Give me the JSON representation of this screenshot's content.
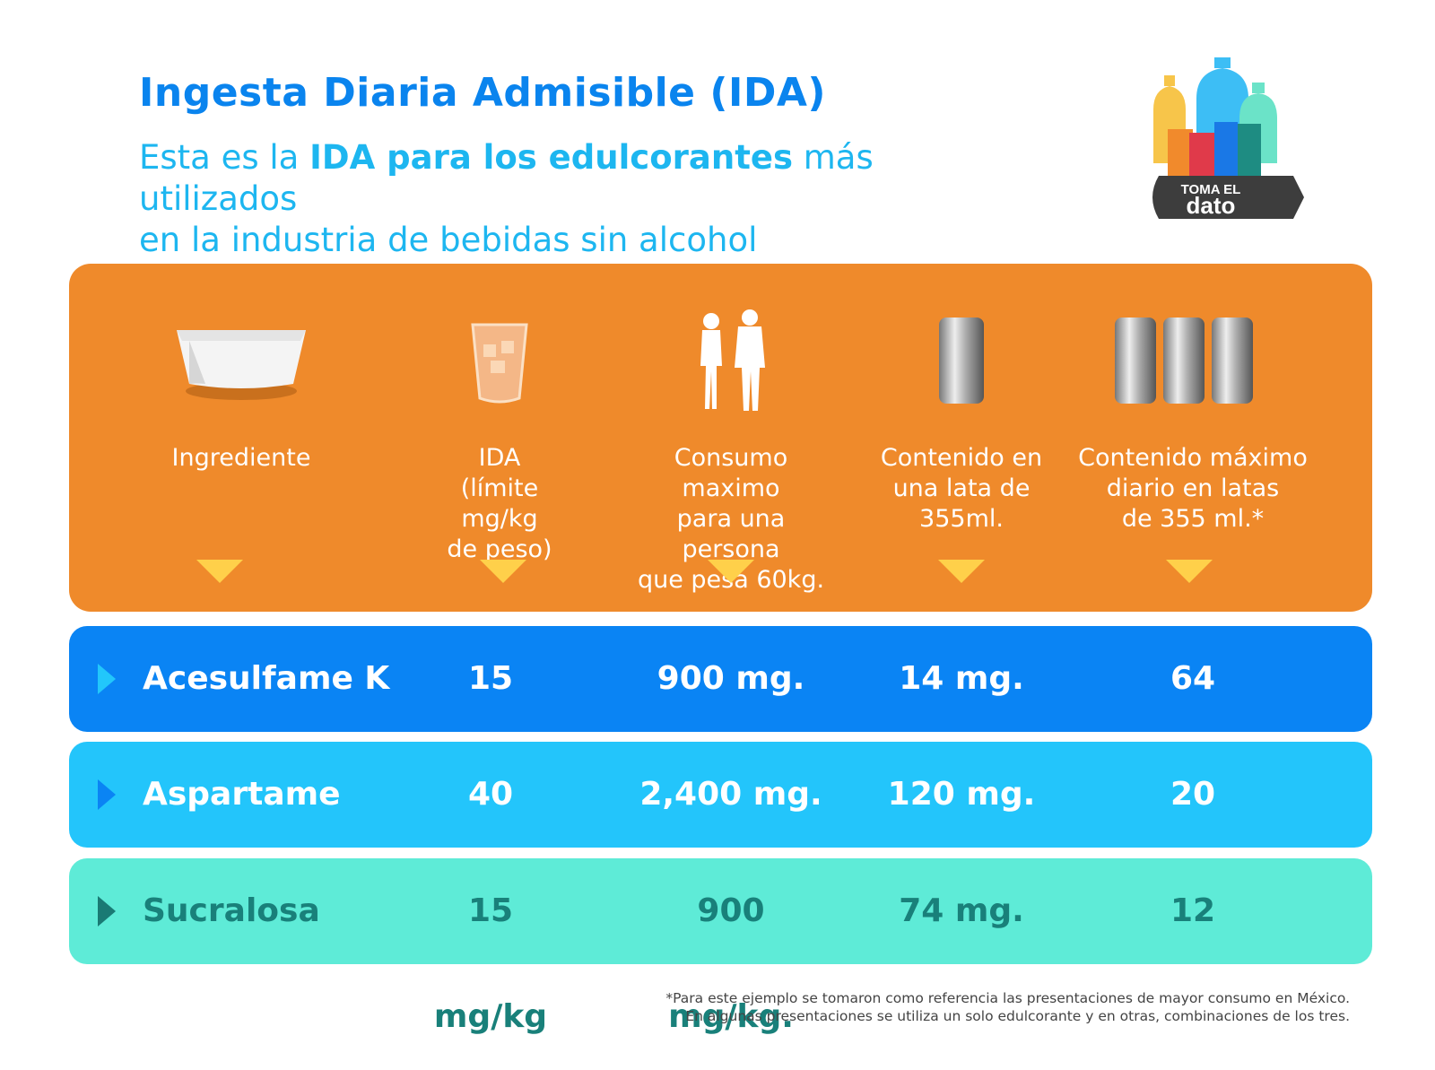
{
  "title": "Ingesta Diaria Admisible (IDA)",
  "subtitle": {
    "part1": "Esta es la ",
    "part2_bold": "IDA para los edulcorantes",
    "part3": " más utilizados",
    "line2": "en la industria de bebidas sin alcohol"
  },
  "logo": {
    "line1": "TOMA EL",
    "line2": "dato"
  },
  "columns": [
    {
      "icon": "sweetener-tub-icon",
      "label": "Ingrediente"
    },
    {
      "icon": "water-glass-icon",
      "label": "IDA\n(límite mg/kg\nde peso)"
    },
    {
      "icon": "people-silhouette-icon",
      "label": "Consumo maximo\npara una persona\nque pesa 60kg."
    },
    {
      "icon": "soda-can-icon",
      "label": "Contenido en\nuna lata de\n355ml."
    },
    {
      "icon": "three-cans-icon",
      "label": "Contenido máximo\ndiario en latas\nde 355 ml.*"
    }
  ],
  "rows": [
    {
      "ingredient": "Acesulfame K",
      "ida": "15 mg/kg",
      "max_60kg": "900 mg.",
      "per_can": "14 mg.",
      "max_cans": "64"
    },
    {
      "ingredient": "Aspartame",
      "ida": "40 mg/kg",
      "max_60kg": "2,400 mg.",
      "per_can": "120 mg.",
      "max_cans": "20"
    },
    {
      "ingredient": "Sucralosa",
      "ida": "15 mg/kg",
      "max_60kg": "900 mg/kg.",
      "per_can": "74 mg.",
      "max_cans": "12"
    }
  ],
  "footnote": {
    "line1": "*Para este ejemplo se tomaron como referencia las presentaciones de mayor consumo en México.",
    "line2": "En algunas presentaciones se utiliza un solo edulcorante y en otras, combinaciones de los tres."
  },
  "colors": {
    "title": "#0a84ee",
    "subtitle": "#1db6f0",
    "header": "#ef8a2b",
    "arrow": "#ffd04a",
    "row1": "#0a84f4",
    "row2": "#23c5fb",
    "row3": "#5eebd7",
    "row3_text": "#19807a"
  }
}
